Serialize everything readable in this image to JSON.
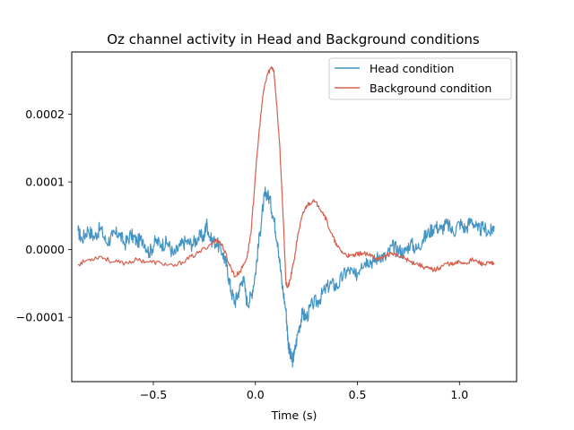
{
  "chart_data": {
    "type": "line",
    "title": "Oz channel activity in Head and Background conditions",
    "xlabel": "Time (s)",
    "ylabel": "",
    "xlim": [
      -0.9,
      1.28
    ],
    "ylim": [
      -0.000195,
      0.000292
    ],
    "x_ticks": [
      -0.5,
      0.0,
      0.5,
      1.0
    ],
    "x_tick_labels": [
      "−0.5",
      "0.0",
      "0.5",
      "1.0"
    ],
    "y_ticks": [
      -0.0001,
      0.0,
      0.0001,
      0.0002
    ],
    "y_tick_labels": [
      "−0.0001",
      "0.0000",
      "0.0001",
      "0.0002"
    ],
    "grid": false,
    "legend_position": "top-right",
    "series": [
      {
        "name": "Head condition",
        "color": "#4393c3",
        "x": [
          -0.87,
          -0.85,
          -0.82,
          -0.79,
          -0.76,
          -0.73,
          -0.7,
          -0.67,
          -0.64,
          -0.61,
          -0.58,
          -0.55,
          -0.52,
          -0.49,
          -0.46,
          -0.43,
          -0.4,
          -0.37,
          -0.34,
          -0.31,
          -0.28,
          -0.25,
          -0.24,
          -0.22,
          -0.19,
          -0.16,
          -0.14,
          -0.12,
          -0.1,
          -0.08,
          -0.06,
          -0.04,
          -0.02,
          0.0,
          0.02,
          0.04,
          0.05,
          0.07,
          0.09,
          0.11,
          0.13,
          0.15,
          0.16,
          0.17,
          0.18,
          0.19,
          0.21,
          0.23,
          0.25,
          0.28,
          0.31,
          0.34,
          0.37,
          0.4,
          0.43,
          0.46,
          0.49,
          0.52,
          0.55,
          0.58,
          0.61,
          0.64,
          0.67,
          0.7,
          0.73,
          0.76,
          0.79,
          0.82,
          0.85,
          0.88,
          0.91,
          0.94,
          0.97,
          1.0,
          1.03,
          1.06,
          1.09,
          1.12,
          1.15,
          1.17
        ],
        "values": [
          2.8e-05,
          1.5e-05,
          3e-05,
          1.8e-05,
          3.2e-05,
          1e-05,
          2e-05,
          2.5e-05,
          8e-06,
          2.2e-05,
          1.2e-05,
          1.5e-05,
          -5e-06,
          1.2e-05,
          8e-06,
          1e-05,
          -8e-06,
          5e-06,
          1.2e-05,
          8e-06,
          1.8e-05,
          2e-05,
          4e-05,
          1.5e-05,
          1e-05,
          -5e-06,
          -2.5e-05,
          -6e-05,
          -7.8e-05,
          -6e-05,
          -4e-05,
          -8e-05,
          -6.8e-05,
          -3.5e-05,
          2e-05,
          7e-05,
          8.5e-05,
          7.5e-05,
          4.5e-05,
          1e-05,
          -5e-05,
          -9e-05,
          -0.000135,
          -0.000155,
          -0.000165,
          -0.000155,
          -0.00012,
          -9.5e-05,
          -0.0001,
          -8e-05,
          -7.5e-05,
          -6e-05,
          -5e-05,
          -5.5e-05,
          -3.8e-05,
          -3e-05,
          -4e-05,
          -2e-05,
          -1.5e-05,
          -1.8e-05,
          -8e-06,
          -1.2e-05,
          5e-06,
          0.0,
          -5e-06,
          1e-05,
          0.0,
          1.5e-05,
          2.5e-05,
          3.5e-05,
          3e-05,
          3.8e-05,
          2.5e-05,
          4e-05,
          3e-05,
          4.5e-05,
          2.8e-05,
          3.2e-05,
          2.5e-05,
          3.5e-05
        ]
      },
      {
        "name": "Background condition",
        "color": "#d6604d",
        "x": [
          -0.87,
          -0.82,
          -0.76,
          -0.7,
          -0.64,
          -0.58,
          -0.52,
          -0.46,
          -0.4,
          -0.34,
          -0.28,
          -0.22,
          -0.19,
          -0.16,
          -0.13,
          -0.1,
          -0.07,
          -0.04,
          -0.02,
          0.0,
          0.02,
          0.04,
          0.06,
          0.08,
          0.09,
          0.1,
          0.12,
          0.14,
          0.15,
          0.16,
          0.17,
          0.19,
          0.21,
          0.23,
          0.25,
          0.28,
          0.31,
          0.34,
          0.37,
          0.4,
          0.43,
          0.46,
          0.49,
          0.52,
          0.55,
          0.58,
          0.61,
          0.64,
          0.67,
          0.7,
          0.73,
          0.76,
          0.79,
          0.82,
          0.85,
          0.88,
          0.91,
          0.94,
          0.97,
          1.0,
          1.03,
          1.06,
          1.09,
          1.12,
          1.15,
          1.17
        ],
        "values": [
          -2.2e-05,
          -1.5e-05,
          -1e-05,
          -1.8e-05,
          -2e-05,
          -1.5e-05,
          -1.8e-05,
          -2e-05,
          -2.5e-05,
          -1.5e-05,
          -5e-06,
          8e-06,
          1.5e-05,
          5e-06,
          -2e-05,
          -4e-05,
          -3e-05,
          -1e-05,
          3e-05,
          0.00011,
          0.00018,
          0.000235,
          0.00026,
          0.00027,
          0.000265,
          0.00023,
          0.00015,
          2e-05,
          -5e-05,
          -5.5e-05,
          -4.5e-05,
          -1.5e-05,
          2.5e-05,
          5e-05,
          6.5e-05,
          7.2e-05,
          6.5e-05,
          5e-05,
          2.5e-05,
          5e-06,
          -5e-06,
          -1e-05,
          -8e-06,
          -5e-06,
          -8e-06,
          -1e-05,
          -1.5e-05,
          -8e-06,
          -5e-06,
          -1e-05,
          -1.2e-05,
          -1.8e-05,
          -2e-05,
          -2.5e-05,
          -2.8e-05,
          -3e-05,
          -2.5e-05,
          -2e-05,
          -2.2e-05,
          -1.8e-05,
          -2e-05,
          -1.5e-05,
          -1.8e-05,
          -2.2e-05,
          -2e-05,
          -2.2e-05
        ]
      }
    ]
  }
}
